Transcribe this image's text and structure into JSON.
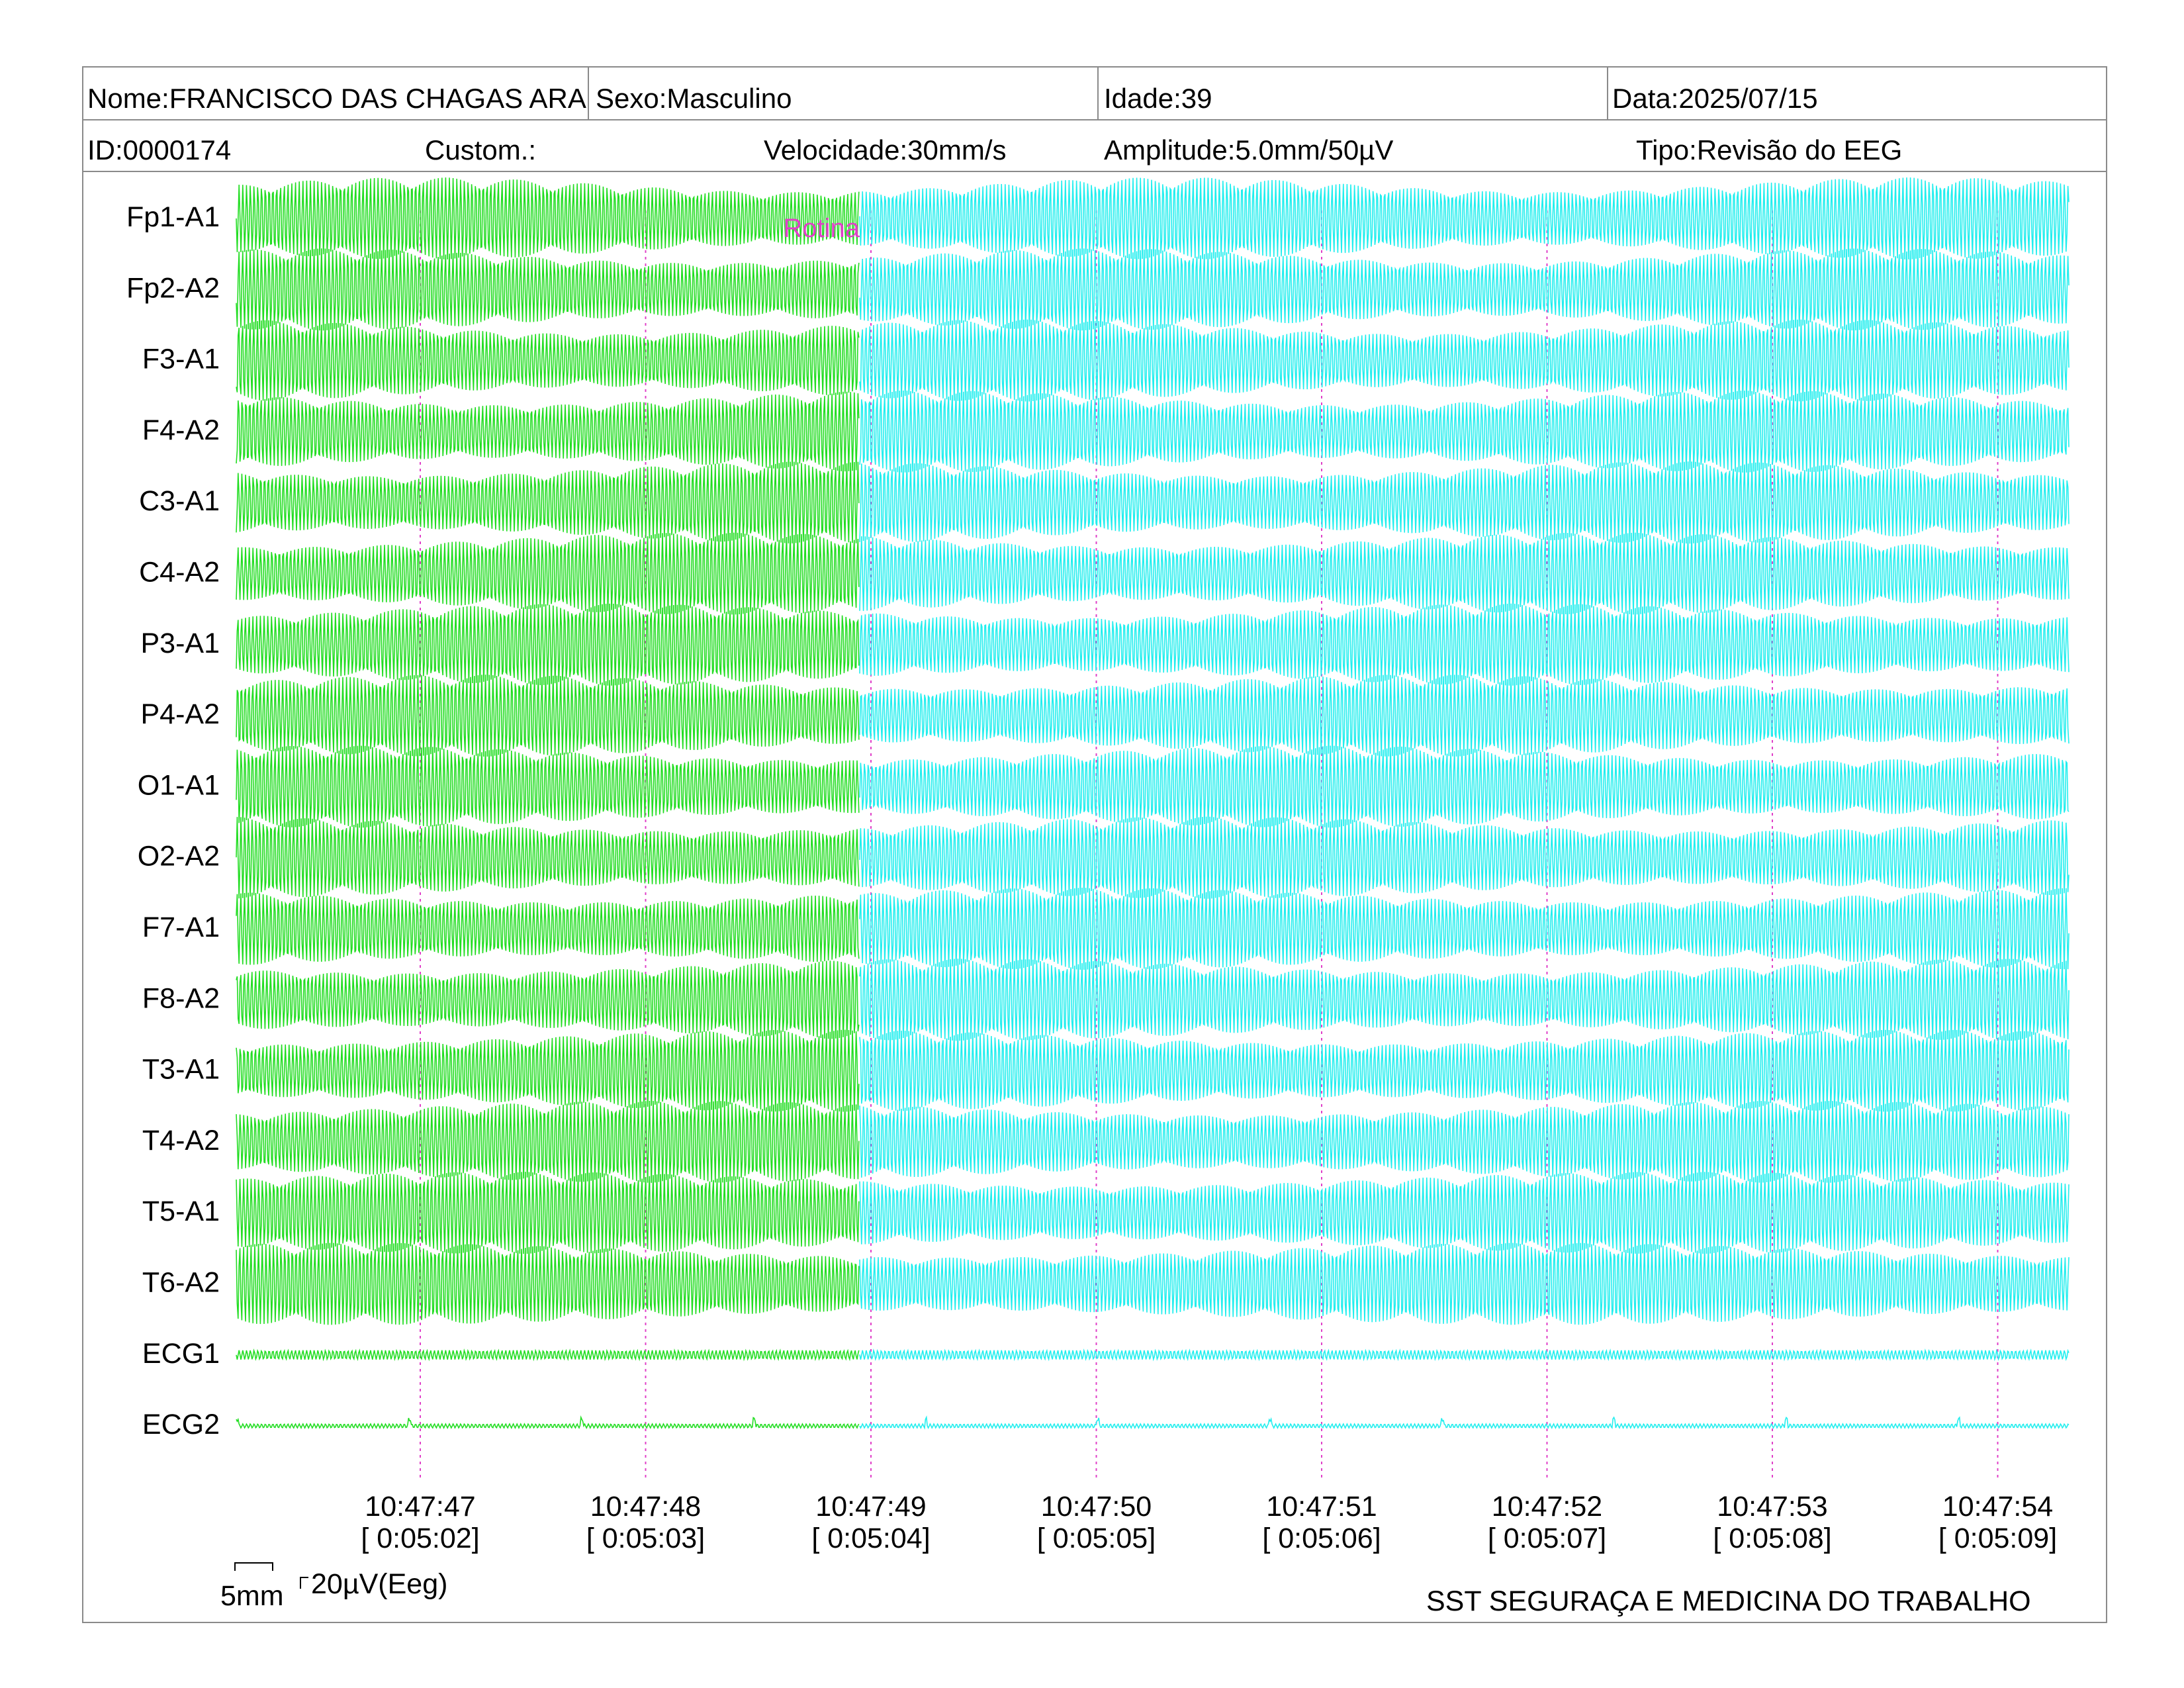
{
  "header": {
    "name": "Nome:FRANCISCO DAS CHAGAS ARA",
    "sex": "Sexo:Masculino",
    "age": "Idade:39",
    "date": "Data:2025/07/15",
    "id": "ID:0000174",
    "custom": "Custom.:",
    "speed": "Velocidade:30mm/s",
    "amplitude": "Amplitude:5.0mm/50µV",
    "type": "Tipo:Revisão do EEG"
  },
  "footer": {
    "scale_x": "5mm",
    "scale_y": "20µV(Eeg)",
    "company": "SST SEGURAÇA E MEDICINA DO TRABALHO"
  },
  "colors": {
    "segment1": "#22dd22",
    "segment2": "#22eeee",
    "marker": "#e040c8",
    "border": "#8a8a8a"
  },
  "chart_data": {
    "type": "line",
    "title": "",
    "channels": [
      "Fp1-A1",
      "Fp2-A2",
      "F3-A1",
      "F4-A2",
      "C3-A1",
      "C4-A2",
      "P3-A1",
      "P4-A2",
      "O1-A1",
      "O2-A2",
      "F7-A1",
      "F8-A2",
      "T3-A1",
      "T4-A2",
      "T5-A1",
      "T6-A2",
      "ECG1",
      "ECG2"
    ],
    "time_ticks": [
      {
        "clock": "10:47:47",
        "elapsed": "[ 0:05:02]"
      },
      {
        "clock": "10:47:48",
        "elapsed": "[ 0:05:03]"
      },
      {
        "clock": "10:47:49",
        "elapsed": "[ 0:05:04]"
      },
      {
        "clock": "10:47:50",
        "elapsed": "[ 0:05:05]"
      },
      {
        "clock": "10:47:51",
        "elapsed": "[ 0:05:06]"
      },
      {
        "clock": "10:47:52",
        "elapsed": "[ 0:05:07]"
      },
      {
        "clock": "10:47:53",
        "elapsed": "[ 0:05:08]"
      },
      {
        "clock": "10:47:54",
        "elapsed": "[ 0:05:09]"
      }
    ],
    "x_range_seconds": [
      46.2,
      54.3
    ],
    "segment_change_second": 48.95,
    "annotation": {
      "text": "Rotina",
      "time_second": 48.95
    },
    "eeg_frequency_hz": 60,
    "grid": false
  }
}
